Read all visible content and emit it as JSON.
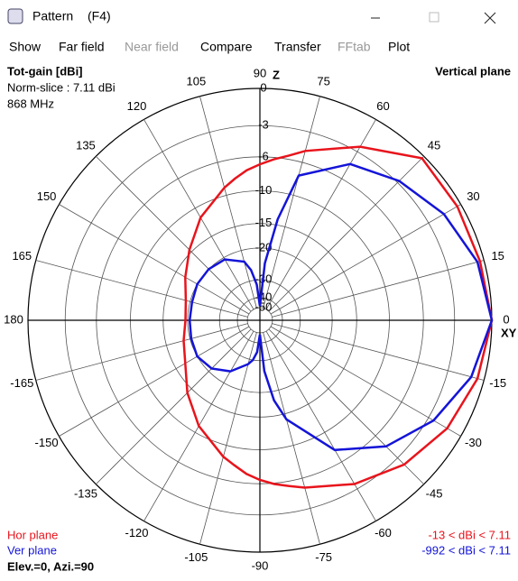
{
  "window": {
    "title": "Pattern",
    "shortcut": "(F4)"
  },
  "menu": [
    {
      "label": "Show"
    },
    {
      "label": "Far field"
    },
    {
      "label": "Near field",
      "disabled": true
    },
    {
      "label": "Compare"
    },
    {
      "label": "Transfer"
    },
    {
      "label": "FFtab",
      "disabled": true
    },
    {
      "label": "Plot"
    }
  ],
  "chart_data": {
    "type": "polar",
    "title": "Tot-gain [dBi]",
    "info": [
      "Norm-slice : 7.11 dBi",
      "868 MHz"
    ],
    "plane": "Vertical plane",
    "axis_top": "Z",
    "axis_right": "XY",
    "angle_ticks": [
      0,
      15,
      30,
      45,
      60,
      75,
      90,
      105,
      120,
      135,
      150,
      165,
      180,
      -165,
      -150,
      -135,
      -120,
      -105,
      -90,
      -75,
      -60,
      -45,
      -30,
      -15
    ],
    "rticks": [
      0,
      -3,
      -6,
      -10,
      -15,
      -20,
      -30,
      -40,
      -50
    ],
    "x": [
      0,
      15,
      30,
      45,
      60,
      75,
      80,
      85,
      90,
      95,
      100,
      105,
      120,
      135,
      150,
      165,
      180,
      -165,
      -150,
      -135,
      -120,
      -105,
      -100,
      -95,
      -90,
      -85,
      -80,
      -75,
      -60,
      -45,
      -30,
      -15
    ],
    "series": [
      {
        "name": "Hor plane",
        "color": "#e8141c",
        "range_label": "-13 < dBi < 7.11",
        "values": [
          0,
          -0.3,
          -0.3,
          -0.2,
          -2.5,
          -4.8,
          -5.6,
          -6.2,
          -6.8,
          -7.4,
          -8.2,
          -9,
          -11.5,
          -14.5,
          -17,
          -19,
          -19.5,
          -18.5,
          -17,
          -14,
          -11,
          -8.5,
          -7.8,
          -7,
          -6.4,
          -5.9,
          -5.5,
          -5,
          -3.5,
          -2.2,
          -1.2,
          -0.5
        ]
      },
      {
        "name": "Ver plane",
        "color": "#1414d8",
        "range_label": "-992 < dBi < 7.11",
        "values": [
          0,
          -0.5,
          -1.5,
          -2.8,
          -4.3,
          -7.5,
          -14,
          -24,
          -48,
          -32,
          -26,
          -23,
          -20.5,
          -20,
          -20,
          -20.5,
          -20.5,
          -20.3,
          -20,
          -21,
          -23.5,
          -28,
          -30,
          -34,
          -48,
          -26,
          -18,
          -14,
          -7.5,
          -4.5,
          -2.5,
          -1
        ]
      }
    ],
    "footer": "Elev.=0, Azi.=90"
  }
}
